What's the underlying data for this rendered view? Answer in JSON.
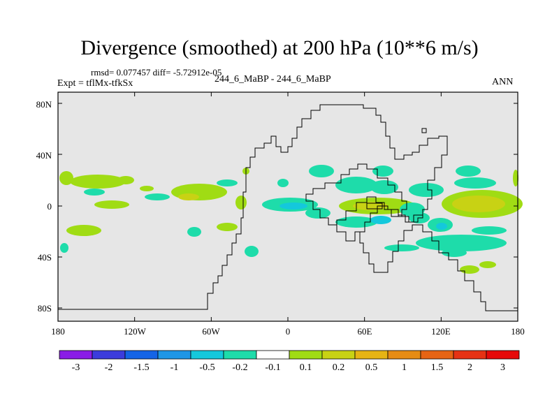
{
  "title": "Divergence (smoothed) at 200 hPa (10**6 m/s)",
  "stats": "rmsd= 0.077457 diff= -5.72912e-05",
  "expt": "Expt = tflMx-tfkSx",
  "center_label": "244_6_MaBP - 244_6_MaBP",
  "season": "ANN",
  "axes": {
    "lat_ticks": [
      "80N",
      "40N",
      "0",
      "40S",
      "80S"
    ],
    "lon_ticks": [
      "180",
      "120W",
      "60W",
      "0",
      "60E",
      "120E",
      "180"
    ]
  },
  "colorbar": {
    "colors": [
      "#8a1ce6",
      "#3c3cdc",
      "#1464e6",
      "#1e96e6",
      "#14c8dc",
      "#1edcaa",
      "#ffffff",
      "#a0dc14",
      "#c8d214",
      "#e6b414",
      "#e68c14",
      "#e66414",
      "#e63214",
      "#e60a0a"
    ],
    "labels": [
      "-3",
      "-2",
      "-1.5",
      "-1",
      "-0.5",
      "-0.2",
      "-0.1",
      "0.1",
      "0.2",
      "0.5",
      "1",
      "1.5",
      "2",
      "3"
    ]
  },
  "colors": {
    "background_field": "#e6e6e6",
    "positive_weak": "#a0dc14",
    "positive_mid": "#c8d214",
    "negative_weak": "#1edcaa",
    "negative_mid": "#14c8dc"
  }
}
